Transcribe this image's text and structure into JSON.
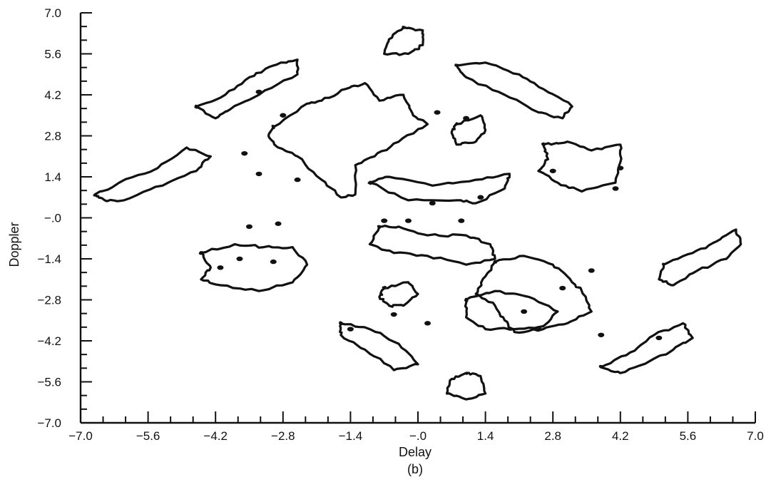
{
  "chart_data": {
    "type": "contour",
    "xlabel": "Delay",
    "ylabel": "Doppler",
    "caption": "(b)",
    "xlim": [
      -7.0,
      7.0
    ],
    "ylim": [
      -7.0,
      7.0
    ],
    "x_ticks": [
      -7.0,
      -5.6,
      -4.2,
      -2.8,
      -1.4,
      0.0,
      1.4,
      2.8,
      4.2,
      5.6,
      7.0
    ],
    "x_tick_labels": [
      "−7.0",
      "−5.6",
      "−4.2",
      "−2.8",
      "−1.4",
      "−.0",
      "1.4",
      "2.8",
      "4.2",
      "5.6",
      "7.0"
    ],
    "y_ticks": [
      7.0,
      5.6,
      4.2,
      2.8,
      1.4,
      0.0,
      -1.4,
      -2.8,
      -4.2,
      -5.6,
      -7.0
    ],
    "y_tick_labels": [
      "7.0",
      "5.6",
      "4.2",
      "2.8",
      "1.4",
      "−.0",
      "−1.4",
      "−2.8",
      "−4.2",
      "−5.6",
      "−7.0"
    ],
    "minor_ticks_per_interval": 2,
    "contours": [
      [
        [
          -0.3,
          6.5
        ],
        [
          0.1,
          6.4
        ],
        [
          0.1,
          5.9
        ],
        [
          -0.2,
          5.6
        ],
        [
          -0.7,
          5.6
        ],
        [
          -0.6,
          6.1
        ],
        [
          -0.3,
          6.5
        ]
      ],
      [
        [
          -6.7,
          0.8
        ],
        [
          -6.2,
          1.2
        ],
        [
          -5.4,
          1.7
        ],
        [
          -4.8,
          2.4
        ],
        [
          -4.3,
          2.1
        ],
        [
          -4.6,
          1.6
        ],
        [
          -5.3,
          1.1
        ],
        [
          -6.1,
          0.6
        ],
        [
          -6.5,
          0.6
        ],
        [
          -6.7,
          0.8
        ]
      ],
      [
        [
          -4.6,
          3.8
        ],
        [
          -4.0,
          4.2
        ],
        [
          -3.5,
          4.8
        ],
        [
          -3.0,
          5.2
        ],
        [
          -2.5,
          5.4
        ],
        [
          -2.5,
          4.9
        ],
        [
          -3.3,
          4.2
        ],
        [
          -3.9,
          3.7
        ],
        [
          -4.2,
          3.4
        ],
        [
          -4.6,
          3.8
        ]
      ],
      [
        [
          -3.0,
          3.1
        ],
        [
          -2.3,
          3.9
        ],
        [
          -2.0,
          4.0
        ],
        [
          -1.5,
          4.4
        ],
        [
          -1.1,
          4.6
        ],
        [
          -0.8,
          4.0
        ],
        [
          -0.3,
          4.2
        ],
        [
          -0.1,
          3.5
        ],
        [
          0.2,
          3.2
        ],
        [
          -0.4,
          2.6
        ],
        [
          -0.9,
          2.1
        ],
        [
          -1.3,
          1.8
        ],
        [
          -1.3,
          0.8
        ],
        [
          -1.6,
          0.7
        ],
        [
          -2.0,
          1.3
        ],
        [
          -2.5,
          2.1
        ],
        [
          -2.9,
          2.4
        ],
        [
          -3.1,
          2.8
        ],
        [
          -3.0,
          3.1
        ]
      ],
      [
        [
          -1.0,
          1.2
        ],
        [
          -0.2,
          0.6
        ],
        [
          0.8,
          0.6
        ],
        [
          1.2,
          0.5
        ],
        [
          1.8,
          1.0
        ],
        [
          1.9,
          1.5
        ],
        [
          1.2,
          1.3
        ],
        [
          0.3,
          1.1
        ],
        [
          -0.6,
          1.4
        ],
        [
          -1.0,
          1.2
        ]
      ],
      [
        [
          -0.8,
          -0.3
        ],
        [
          -0.4,
          -0.3
        ],
        [
          0.2,
          -0.6
        ],
        [
          1.0,
          -0.6
        ],
        [
          1.5,
          -0.9
        ],
        [
          1.6,
          -1.4
        ],
        [
          1.0,
          -1.6
        ],
        [
          0.2,
          -1.3
        ],
        [
          -0.5,
          -1.2
        ],
        [
          -1.0,
          -0.9
        ],
        [
          -0.8,
          -0.3
        ]
      ],
      [
        [
          1.6,
          -1.5
        ],
        [
          2.2,
          -1.3
        ],
        [
          2.8,
          -1.6
        ],
        [
          3.1,
          -2.0
        ],
        [
          3.4,
          -2.5
        ],
        [
          3.6,
          -3.2
        ],
        [
          3.1,
          -3.6
        ],
        [
          2.6,
          -3.8
        ],
        [
          2.0,
          -3.9
        ],
        [
          1.8,
          -3.5
        ],
        [
          1.6,
          -3.0
        ],
        [
          1.2,
          -2.6
        ],
        [
          1.4,
          -2.0
        ],
        [
          1.6,
          -1.5
        ]
      ],
      [
        [
          -4.5,
          -1.2
        ],
        [
          -3.8,
          -0.9
        ],
        [
          -3.2,
          -1.0
        ],
        [
          -2.6,
          -1.0
        ],
        [
          -2.3,
          -1.6
        ],
        [
          -2.6,
          -2.2
        ],
        [
          -3.3,
          -2.5
        ],
        [
          -4.1,
          -2.3
        ],
        [
          -4.5,
          -2.1
        ],
        [
          -4.3,
          -1.7
        ],
        [
          -4.5,
          -1.2
        ]
      ],
      [
        [
          2.6,
          2.5
        ],
        [
          3.1,
          2.6
        ],
        [
          3.6,
          2.3
        ],
        [
          4.2,
          2.5
        ],
        [
          4.2,
          1.9
        ],
        [
          4.1,
          1.2
        ],
        [
          3.4,
          0.9
        ],
        [
          2.9,
          1.2
        ],
        [
          2.5,
          1.6
        ],
        [
          2.7,
          2.0
        ],
        [
          2.6,
          2.5
        ]
      ],
      [
        [
          0.8,
          3.2
        ],
        [
          1.3,
          3.5
        ],
        [
          1.4,
          3.0
        ],
        [
          1.2,
          2.6
        ],
        [
          0.8,
          2.5
        ],
        [
          0.7,
          2.9
        ],
        [
          0.8,
          3.2
        ]
      ],
      [
        [
          -0.7,
          -2.4
        ],
        [
          -0.2,
          -2.2
        ],
        [
          0.0,
          -2.6
        ],
        [
          -0.3,
          -3.0
        ],
        [
          -0.6,
          -3.0
        ],
        [
          -0.8,
          -2.7
        ],
        [
          -0.7,
          -2.4
        ]
      ],
      [
        [
          0.8,
          5.2
        ],
        [
          1.4,
          5.3
        ],
        [
          2.1,
          4.9
        ],
        [
          2.6,
          4.4
        ],
        [
          3.2,
          3.8
        ],
        [
          3.0,
          3.4
        ],
        [
          2.5,
          3.6
        ],
        [
          1.8,
          4.2
        ],
        [
          1.0,
          4.8
        ],
        [
          0.8,
          5.2
        ]
      ],
      [
        [
          5.1,
          -1.6
        ],
        [
          5.7,
          -1.2
        ],
        [
          6.2,
          -0.8
        ],
        [
          6.6,
          -0.4
        ],
        [
          6.7,
          -0.9
        ],
        [
          6.4,
          -1.4
        ],
        [
          5.8,
          -1.8
        ],
        [
          5.3,
          -2.3
        ],
        [
          5.0,
          -2.1
        ],
        [
          5.1,
          -1.6
        ]
      ],
      [
        [
          1.0,
          -2.8
        ],
        [
          1.6,
          -2.5
        ],
        [
          2.3,
          -2.7
        ],
        [
          2.9,
          -3.2
        ],
        [
          2.6,
          -3.7
        ],
        [
          2.0,
          -3.8
        ],
        [
          1.4,
          -3.8
        ],
        [
          1.0,
          -3.4
        ],
        [
          1.0,
          -2.8
        ]
      ],
      [
        [
          -1.6,
          -3.6
        ],
        [
          -1.0,
          -3.8
        ],
        [
          -0.4,
          -4.3
        ],
        [
          0.0,
          -5.0
        ],
        [
          -0.5,
          -5.2
        ],
        [
          -1.1,
          -4.5
        ],
        [
          -1.6,
          -4.0
        ],
        [
          -1.6,
          -3.6
        ]
      ],
      [
        [
          3.8,
          -5.1
        ],
        [
          4.4,
          -4.6
        ],
        [
          4.9,
          -4.0
        ],
        [
          5.5,
          -3.6
        ],
        [
          5.7,
          -4.1
        ],
        [
          5.3,
          -4.5
        ],
        [
          4.8,
          -4.9
        ],
        [
          4.2,
          -5.3
        ],
        [
          3.8,
          -5.1
        ]
      ],
      [
        [
          1.0,
          -5.3
        ],
        [
          1.3,
          -5.4
        ],
        [
          1.4,
          -6.0
        ],
        [
          1.0,
          -6.2
        ],
        [
          0.6,
          -6.0
        ],
        [
          0.7,
          -5.5
        ],
        [
          1.0,
          -5.3
        ]
      ]
    ],
    "filled_spots": [
      [
        -3.7,
        -1.4
      ],
      [
        -3.0,
        -1.5
      ],
      [
        -3.5,
        -0.3
      ],
      [
        -2.9,
        -0.2
      ],
      [
        -4.1,
        -1.7
      ],
      [
        -2.8,
        3.5
      ],
      [
        -3.3,
        1.5
      ],
      [
        -2.5,
        1.3
      ],
      [
        -3.6,
        2.2
      ],
      [
        3.6,
        -1.8
      ],
      [
        3.0,
        -2.4
      ],
      [
        4.1,
        1.0
      ],
      [
        2.8,
        1.6
      ],
      [
        4.2,
        1.7
      ],
      [
        0.3,
        0.5
      ],
      [
        -0.2,
        -0.1
      ],
      [
        -0.7,
        -0.1
      ],
      [
        0.9,
        -0.1
      ],
      [
        1.3,
        0.7
      ],
      [
        0.4,
        3.6
      ],
      [
        1.0,
        3.4
      ],
      [
        2.2,
        -3.2
      ],
      [
        -0.5,
        -3.3
      ],
      [
        0.2,
        -3.6
      ],
      [
        -3.3,
        4.3
      ],
      [
        5.0,
        -4.1
      ],
      [
        -1.4,
        -3.8
      ],
      [
        2.5,
        -3.8
      ],
      [
        3.8,
        -4.0
      ]
    ]
  }
}
